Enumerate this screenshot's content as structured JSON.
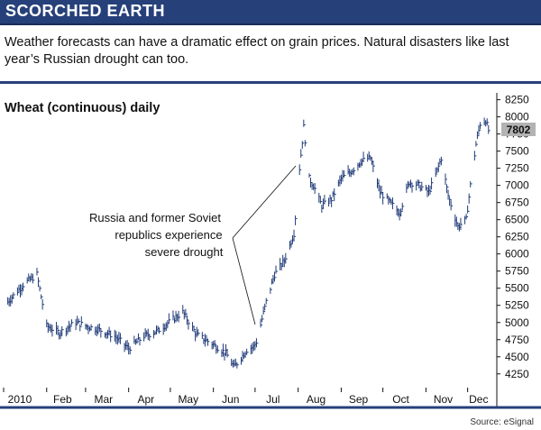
{
  "header": {
    "title": "SCORCHED EARTH"
  },
  "subtitle": "Weather forecasts can have a dramatic effect on grain prices. Natural disasters like last year’s Russian drought can too.",
  "source": "Source: eSignal",
  "colors": {
    "header_bg": "#26407a",
    "bars": "#1f3a78",
    "last_price_box": "#b3b3b3"
  },
  "chart_data": {
    "type": "line",
    "title": "Wheat (continuous) daily",
    "xlabel": "",
    "ylabel": "",
    "x_tick_labels": [
      "2010",
      "Feb",
      "Mar",
      "Apr",
      "May",
      "Jun",
      "Jul",
      "Aug",
      "Sep",
      "Oct",
      "Nov",
      "Dec"
    ],
    "y_tick_labels": [
      "8250",
      "8000",
      "7750",
      "7500",
      "7250",
      "7000",
      "6750",
      "6500",
      "6250",
      "6000",
      "5750",
      "5500",
      "5250",
      "5000",
      "4750",
      "4500",
      "4250"
    ],
    "ylim": [
      4050,
      8350
    ],
    "grid": false,
    "last_price_label": "7802",
    "annotation": [
      "Russia and former Soviet",
      "republics experience",
      "severe drought"
    ],
    "series": [
      {
        "x": [
          "2010-01-04",
          "2010-01-15",
          "2010-01-25",
          "2010-02-01",
          "2010-02-10",
          "2010-02-22",
          "2010-03-01",
          "2010-03-10",
          "2010-03-22",
          "2010-04-01",
          "2010-04-12",
          "2010-04-22",
          "2010-05-03",
          "2010-05-10",
          "2010-05-20",
          "2010-06-01",
          "2010-06-10",
          "2010-06-16",
          "2010-06-25",
          "2010-06-30",
          "2010-07-02",
          "2010-07-09",
          "2010-07-15",
          "2010-07-22",
          "2010-07-29",
          "2010-08-02",
          "2010-08-05",
          "2010-08-09",
          "2010-08-12",
          "2010-08-18",
          "2010-08-25",
          "2010-09-01",
          "2010-09-08",
          "2010-09-15",
          "2010-09-22",
          "2010-09-29",
          "2010-10-06",
          "2010-10-13",
          "2010-10-20",
          "2010-10-27",
          "2010-11-03",
          "2010-11-08",
          "2010-11-12",
          "2010-11-17",
          "2010-11-24",
          "2010-11-30",
          "2010-12-03",
          "2010-12-07",
          "2010-12-10",
          "2010-12-14",
          "2010-12-16"
        ],
        "values": [
          5300,
          5550,
          5700,
          4950,
          4850,
          5000,
          4950,
          4900,
          4800,
          4620,
          4800,
          4880,
          5050,
          5150,
          4820,
          4680,
          4550,
          4350,
          4600,
          4650,
          4720,
          5300,
          5700,
          5900,
          6300,
          7250,
          7850,
          7100,
          7000,
          6700,
          6800,
          7100,
          7200,
          7350,
          7400,
          6900,
          6750,
          6600,
          7050,
          7000,
          6900,
          7150,
          7400,
          6850,
          6400,
          6500,
          7000,
          7600,
          7900,
          7950,
          7802
        ]
      }
    ]
  }
}
